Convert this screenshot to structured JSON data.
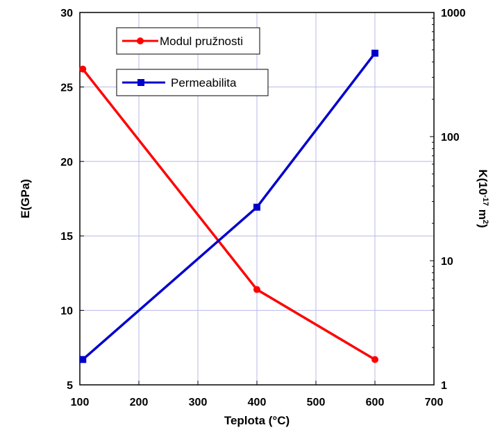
{
  "chart_data": {
    "type": "line",
    "xlabel": "Teplota (°C)",
    "ylabel_left": "E(GPa)",
    "ylabel_right_parts": [
      "K(10",
      "-17",
      " m",
      "2",
      ")"
    ],
    "xlim": [
      100,
      700
    ],
    "ylim_left": [
      5,
      30
    ],
    "ylim_right": [
      1,
      1000
    ],
    "right_axis_scale": "log",
    "x_ticks": [
      "100",
      "200",
      "300",
      "400",
      "500",
      "600",
      "700"
    ],
    "y_left_ticks": [
      "5",
      "10",
      "15",
      "20",
      "25",
      "30"
    ],
    "y_right_ticks": [
      "1",
      "10",
      "100",
      "1000"
    ],
    "grid": true,
    "series": [
      {
        "name": "Modul pružnosti",
        "axis": "left",
        "marker": "circle",
        "color": "#ff0000",
        "x": [
          105,
          400,
          600
        ],
        "y": [
          26.2,
          11.4,
          6.7
        ]
      },
      {
        "name": "Permeabilita",
        "axis": "right",
        "marker": "square",
        "color": "#0000cc",
        "x": [
          105,
          400,
          600
        ],
        "y": [
          1.6,
          27,
          470
        ]
      }
    ]
  }
}
